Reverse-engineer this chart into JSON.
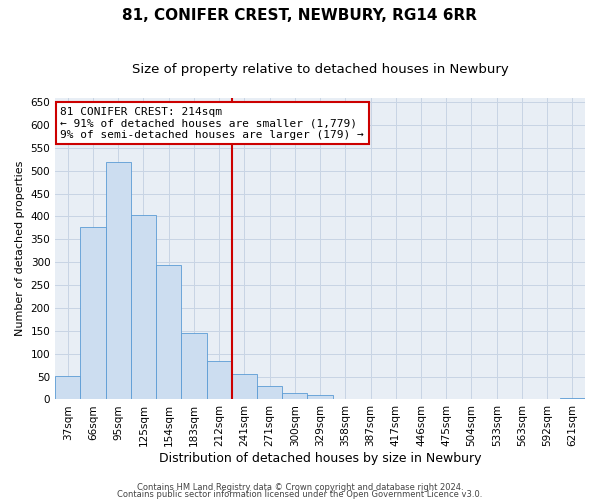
{
  "title": "81, CONIFER CREST, NEWBURY, RG14 6RR",
  "subtitle": "Size of property relative to detached houses in Newbury",
  "xlabel": "Distribution of detached houses by size in Newbury",
  "ylabel": "Number of detached properties",
  "bar_labels": [
    "37sqm",
    "66sqm",
    "95sqm",
    "125sqm",
    "154sqm",
    "183sqm",
    "212sqm",
    "241sqm",
    "271sqm",
    "300sqm",
    "329sqm",
    "358sqm",
    "387sqm",
    "417sqm",
    "446sqm",
    "475sqm",
    "504sqm",
    "533sqm",
    "563sqm",
    "592sqm",
    "621sqm"
  ],
  "bar_values": [
    52,
    378,
    519,
    404,
    293,
    146,
    83,
    55,
    30,
    15,
    10,
    0,
    0,
    0,
    0,
    0,
    0,
    0,
    0,
    0,
    3
  ],
  "bar_color": "#ccddf0",
  "bar_edgecolor": "#5b9bd5",
  "ylim": [
    0,
    660
  ],
  "yticks": [
    0,
    50,
    100,
    150,
    200,
    250,
    300,
    350,
    400,
    450,
    500,
    550,
    600,
    650
  ],
  "property_line_idx": 6,
  "property_line_color": "#cc0000",
  "annotation_line1": "81 CONIFER CREST: 214sqm",
  "annotation_line2": "← 91% of detached houses are smaller (1,779)",
  "annotation_line3": "9% of semi-detached houses are larger (179) →",
  "annotation_box_facecolor": "#ffffff",
  "annotation_box_edgecolor": "#cc0000",
  "footer_line1": "Contains HM Land Registry data © Crown copyright and database right 2024.",
  "footer_line2": "Contains public sector information licensed under the Open Government Licence v3.0.",
  "plot_bg_color": "#e8eef5",
  "fig_bg_color": "#ffffff",
  "grid_color": "#c8d4e4",
  "title_fontsize": 11,
  "subtitle_fontsize": 9.5,
  "xlabel_fontsize": 9,
  "ylabel_fontsize": 8,
  "tick_fontsize": 7.5,
  "annot_fontsize": 8,
  "footer_fontsize": 6
}
